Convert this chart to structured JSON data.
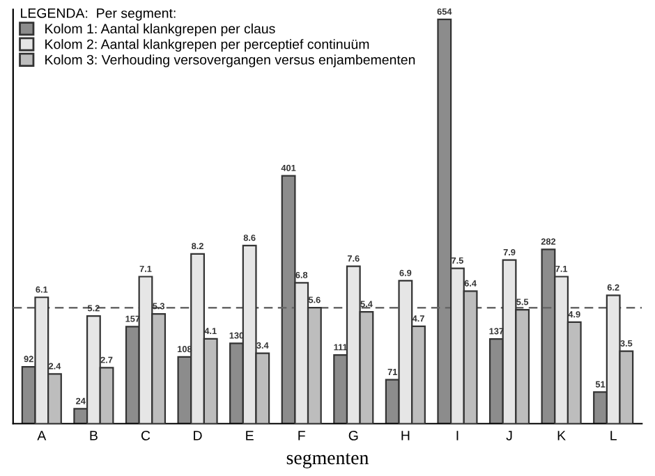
{
  "chart_data": {
    "type": "bar",
    "xlabel": "segmenten",
    "legend_title": "LEGENDA:  Per segment:",
    "categories": [
      "A",
      "B",
      "C",
      "D",
      "E",
      "F",
      "G",
      "H",
      "I",
      "J",
      "K",
      "L"
    ],
    "series": [
      {
        "name": "Kolom 1: Aantal klankgrepen per claus",
        "color": "#8c8c8c",
        "axis": "y",
        "values": [
          92,
          24,
          157,
          108,
          130,
          401,
          111,
          71,
          654,
          137,
          282,
          51
        ]
      },
      {
        "name": "Kolom 2: Aantal klankgrepen per perceptief continuüm",
        "color": "#e6e6e6",
        "axis": "y2",
        "values": [
          6.1,
          5.2,
          7.1,
          8.2,
          8.6,
          6.8,
          7.6,
          6.9,
          7.5,
          7.9,
          7.1,
          6.2
        ]
      },
      {
        "name": "Kolom 3: Verhouding versovergangen versus enjambementen",
        "color": "#bdbdbd",
        "axis": "y2",
        "values": [
          2.4,
          2.7,
          5.3,
          4.1,
          3.4,
          5.6,
          5.4,
          4.7,
          6.4,
          5.5,
          4.9,
          3.5
        ]
      }
    ],
    "ylim": [
      0,
      670
    ],
    "y2lim": [
      0,
      20
    ],
    "ref_lines": [
      {
        "axis": "y2",
        "value": 5.6,
        "color": "#666666",
        "line_style": "dashed"
      }
    ],
    "data_labels": true,
    "legend": "top left",
    "tick_labels": "x",
    "grid": false
  }
}
